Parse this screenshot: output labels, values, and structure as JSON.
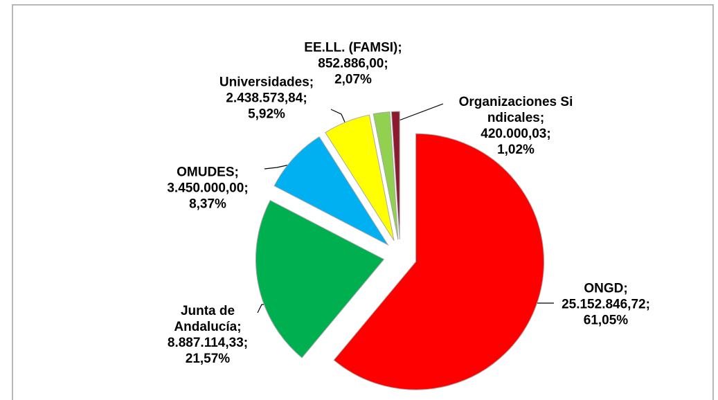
{
  "chart_data": {
    "type": "pie",
    "categories": [
      "ONGD",
      "Junta de Andalucía",
      "OMUDES",
      "Universidades",
      "EE.LL. (FAMSI)",
      "Organizaciones Sindicales"
    ],
    "values": [
      25152846.72,
      8887114.33,
      3450000.0,
      2438573.84,
      852886.0,
      420000.03
    ],
    "value_labels": [
      "25.152.846,72",
      "8.887.114,33",
      "3.450.000,00",
      "2.438.573,84",
      "852.886,00",
      "420.000,03"
    ],
    "percentages": [
      61.05,
      21.57,
      8.37,
      5.92,
      2.07,
      1.02
    ],
    "percentage_labels": [
      "61,05%",
      "21,57%",
      "8,37%",
      "5,92%",
      "2,07%",
      "1,02%"
    ],
    "colors": [
      "#ff0000",
      "#00b050",
      "#00b0f0",
      "#ffff00",
      "#92d050",
      "#8b1a2e"
    ]
  }
}
